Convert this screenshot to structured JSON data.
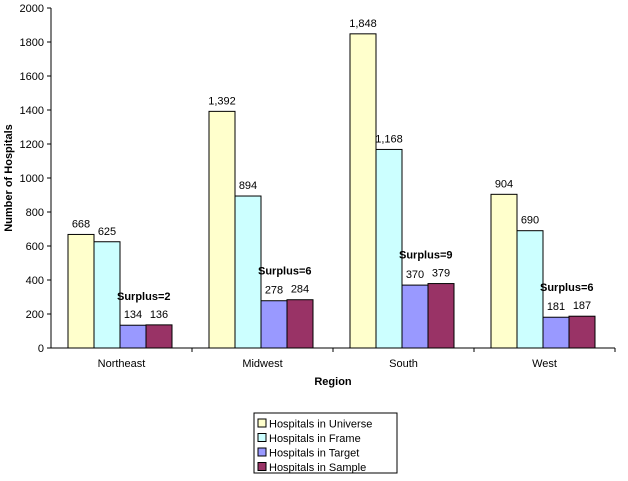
{
  "chart_data": {
    "type": "bar",
    "title": "",
    "xlabel": "Region",
    "ylabel": "Number of Hospitals",
    "ylim": [
      0,
      2000
    ],
    "yticks": [
      0,
      200,
      400,
      600,
      800,
      1000,
      1200,
      1400,
      1600,
      1800,
      2000
    ],
    "grid": false,
    "legend_placement": "bottom",
    "categories": [
      "Northeast",
      "Midwest",
      "South",
      "West"
    ],
    "series": [
      {
        "name": "Hospitals in Universe",
        "color": "#FFFFCC",
        "values": [
          668,
          1392,
          1848,
          904
        ],
        "labels": [
          "668",
          "1,392",
          "1,848",
          "904"
        ]
      },
      {
        "name": "Hospitals in Frame",
        "color": "#CCFFFF",
        "values": [
          625,
          894,
          1168,
          690
        ],
        "labels": [
          "625",
          "894",
          "1,168",
          "690"
        ]
      },
      {
        "name": "Hospitals in Target",
        "color": "#9999FF",
        "values": [
          134,
          278,
          370,
          181
        ],
        "labels": [
          "134",
          "278",
          "370",
          "181"
        ]
      },
      {
        "name": "Hospitals in Sample",
        "color": "#993366",
        "values": [
          136,
          284,
          379,
          187
        ],
        "labels": [
          "136",
          "284",
          "379",
          "187"
        ]
      }
    ],
    "annotations": [
      "Surplus=2",
      "Surplus=6",
      "Surplus=9",
      "Surplus=6"
    ]
  }
}
